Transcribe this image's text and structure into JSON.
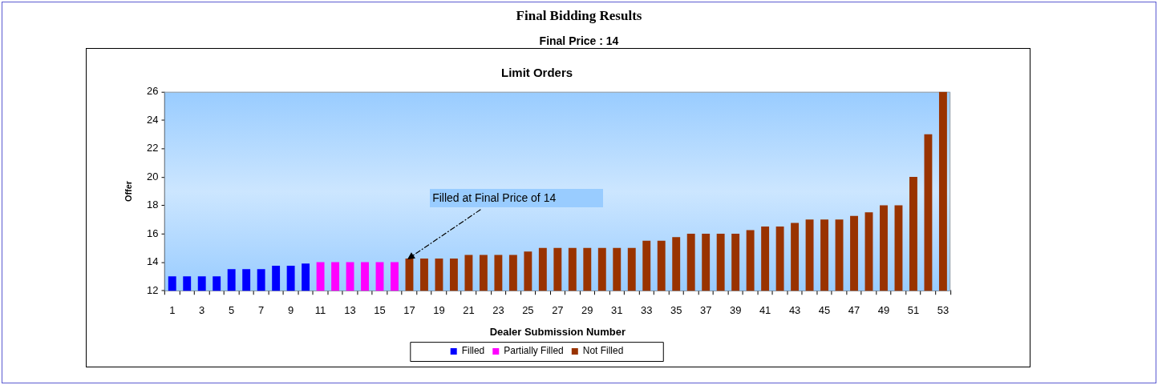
{
  "chart_data": {
    "type": "bar",
    "title": "Final Bidding Results",
    "subtitle": "Final Price : 14",
    "xlabel": "Dealer Submission Number",
    "ylabel": "Offer",
    "series": [
      {
        "name": "Filled",
        "color": "#0000ff",
        "x": [
          1,
          2,
          3,
          4,
          5,
          6,
          7,
          8,
          9,
          10
        ],
        "values": [
          13,
          13,
          13,
          13,
          13.5,
          13.5,
          13.5,
          13.75,
          13.75,
          13.9
        ]
      },
      {
        "name": "Partially Filled",
        "color": "#ff00ff",
        "x": [
          11,
          12,
          13,
          14,
          15,
          16
        ],
        "values": [
          14,
          14,
          14,
          14,
          14,
          14
        ]
      },
      {
        "name": "Not Filled",
        "color": "#993300",
        "x": [
          17,
          18,
          19,
          20,
          21,
          22,
          23,
          24,
          25,
          26,
          27,
          28,
          29,
          30,
          31,
          32,
          33,
          34,
          35,
          36,
          37,
          38,
          39,
          40,
          41,
          42,
          43,
          44,
          45,
          46,
          47,
          48,
          49,
          50,
          51,
          52,
          53
        ],
        "values": [
          14.25,
          14.25,
          14.25,
          14.25,
          14.5,
          14.5,
          14.5,
          14.5,
          14.75,
          15,
          15,
          15,
          15,
          15,
          15,
          15,
          15.5,
          15.5,
          15.75,
          16,
          16,
          16,
          16,
          16.25,
          16.5,
          16.5,
          16.75,
          17,
          17,
          17,
          17.25,
          17.5,
          18,
          18,
          20,
          23,
          26
        ]
      }
    ],
    "xlim": [
      0.5,
      53.5
    ],
    "xticks": [
      {
        "value": 0.5,
        "label": null
      },
      1,
      {
        "value": 1.5,
        "label": null
      },
      {
        "value": 2.5,
        "label": null
      },
      3,
      {
        "value": 3.5,
        "label": null
      },
      {
        "value": 4.5,
        "label": null
      },
      5,
      {
        "value": 5.5,
        "label": null
      },
      {
        "value": 6.5,
        "label": null
      },
      7,
      {
        "value": 7.5,
        "label": null
      },
      {
        "value": 8.5,
        "label": null
      },
      9,
      {
        "value": 9.5,
        "label": null
      },
      {
        "value": 10.5,
        "label": null
      },
      11,
      {
        "value": 11.5,
        "label": null
      },
      {
        "value": 12.5,
        "label": null
      },
      13,
      {
        "value": 13.5,
        "label": null
      },
      {
        "value": 14.5,
        "label": null
      },
      15,
      {
        "value": 15.5,
        "label": null
      },
      {
        "value": 16.5,
        "label": null
      },
      17,
      {
        "value": 17.5,
        "label": null
      },
      {
        "value": 18.5,
        "label": null
      },
      19,
      {
        "value": 19.5,
        "label": null
      },
      {
        "value": 20.5,
        "label": null
      },
      21,
      {
        "value": 21.5,
        "label": null
      },
      {
        "value": 22.5,
        "label": null
      },
      23,
      {
        "value": 23.5,
        "label": null
      },
      {
        "value": 24.5,
        "label": null
      },
      25,
      {
        "value": 25.5,
        "label": null
      },
      {
        "value": 26.5,
        "label": null
      },
      27,
      {
        "value": 27.5,
        "label": null
      },
      {
        "value": 28.5,
        "label": null
      },
      29,
      {
        "value": 29.5,
        "label": null
      },
      {
        "value": 30.5,
        "label": null
      },
      31,
      {
        "value": 31.5,
        "label": null
      },
      {
        "value": 32.5,
        "label": null
      },
      33,
      {
        "value": 33.5,
        "label": null
      },
      {
        "value": 34.5,
        "label": null
      },
      35,
      {
        "value": 35.5,
        "label": null
      },
      {
        "value": 36.5,
        "label": null
      },
      37,
      {
        "value": 37.5,
        "label": null
      },
      {
        "value": 38.5,
        "label": null
      },
      39,
      {
        "value": 39.5,
        "label": null
      },
      {
        "value": 40.5,
        "label": null
      },
      41,
      {
        "value": 41.5,
        "label": null
      },
      {
        "value": 42.5,
        "label": null
      },
      43,
      {
        "value": 43.5,
        "label": null
      },
      {
        "value": 44.5,
        "label": null
      },
      45,
      {
        "value": 45.5,
        "label": null
      },
      {
        "value": 46.5,
        "label": null
      },
      47,
      {
        "value": 47.5,
        "label": null
      },
      {
        "value": 48.5,
        "label": null
      },
      49,
      {
        "value": 49.5,
        "label": null
      },
      {
        "value": 50.5,
        "label": null
      },
      51,
      {
        "value": 51.5,
        "label": null
      },
      {
        "value": 52.5,
        "label": null
      },
      53,
      {
        "value": 53.5,
        "label": null
      }
    ],
    "ylim": [
      12,
      26
    ],
    "yticks": [
      12,
      14,
      16,
      18,
      20,
      22,
      24,
      26
    ],
    "legend": "bottom",
    "annotations": [
      "Limit Orders",
      {
        "text": "Filled at Final Price of 14",
        "x": 17,
        "y": 14.25
      }
    ]
  }
}
